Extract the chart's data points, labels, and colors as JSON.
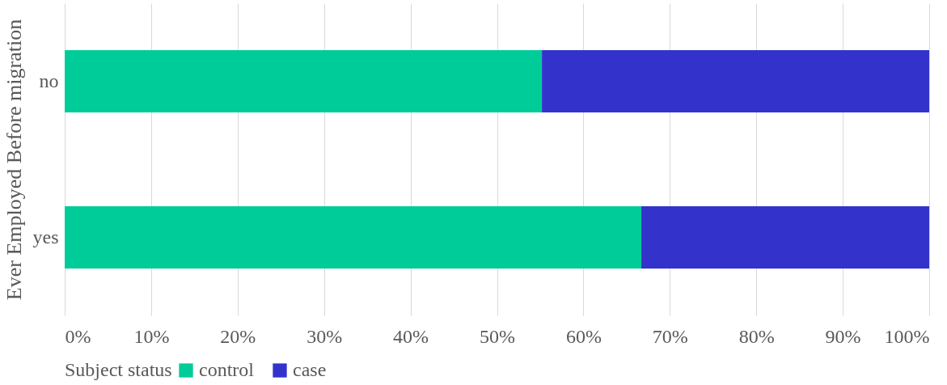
{
  "chart_data": {
    "type": "bar",
    "orientation": "horizontal",
    "stacked": true,
    "ylabel": "Ever Employed Before migration",
    "legend_title": "Subject status",
    "categories": [
      "no",
      "yes"
    ],
    "series": [
      {
        "name": "control",
        "color": "#00cc99",
        "values": [
          55.2,
          66.7
        ]
      },
      {
        "name": "case",
        "color": "#3333cc",
        "values": [
          44.8,
          33.3
        ]
      }
    ],
    "xlim": [
      0,
      100
    ],
    "xticks": [
      {
        "value": 0,
        "label": "0%"
      },
      {
        "value": 10,
        "label": "10%"
      },
      {
        "value": 20,
        "label": "20%"
      },
      {
        "value": 30,
        "label": "30%"
      },
      {
        "value": 40,
        "label": "40%"
      },
      {
        "value": 50,
        "label": "50%"
      },
      {
        "value": 60,
        "label": "60%"
      },
      {
        "value": 70,
        "label": "70%"
      },
      {
        "value": 80,
        "label": "80%"
      },
      {
        "value": 90,
        "label": "90%"
      },
      {
        "value": 100,
        "label": "100%"
      }
    ],
    "grid": "x",
    "legend": "bottom"
  }
}
